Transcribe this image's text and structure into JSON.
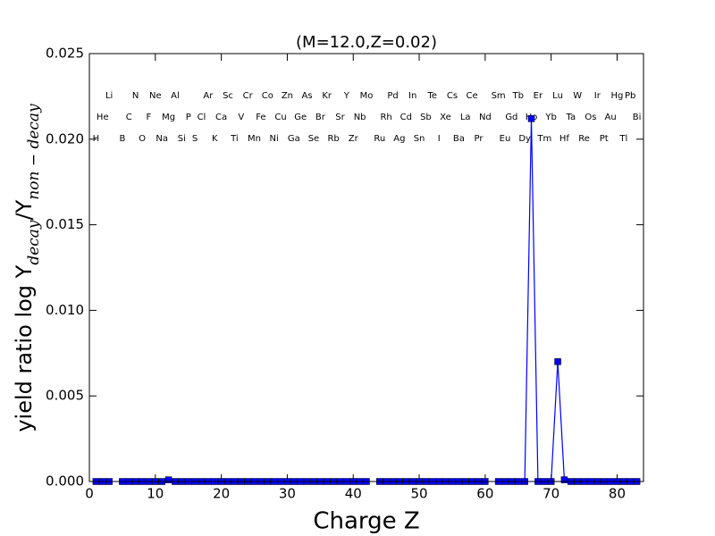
{
  "chart_data": {
    "type": "line",
    "title": "(M=12.0,Z=0.02)",
    "xlabel": "Charge Z",
    "ylabel": [
      {
        "text": "yield ratio log Y"
      },
      {
        "text": "decay",
        "sub": true
      },
      {
        "text": "/Y"
      },
      {
        "text": "non − decay",
        "sub": true
      }
    ],
    "x": [
      1,
      2,
      3,
      4,
      5,
      6,
      7,
      8,
      9,
      10,
      11,
      12,
      13,
      14,
      15,
      16,
      17,
      18,
      19,
      20,
      21,
      22,
      23,
      24,
      25,
      26,
      27,
      28,
      29,
      30,
      31,
      32,
      33,
      34,
      35,
      36,
      37,
      38,
      39,
      40,
      41,
      42,
      43,
      44,
      45,
      46,
      47,
      48,
      49,
      50,
      51,
      52,
      53,
      54,
      55,
      56,
      57,
      58,
      59,
      60,
      61,
      62,
      63,
      64,
      65,
      66,
      67,
      68,
      69,
      70,
      71,
      72,
      73,
      74,
      75,
      76,
      77,
      78,
      79,
      80,
      81,
      82,
      83
    ],
    "series": [
      {
        "color": "#0000ff",
        "marker": "square",
        "values": [
          0,
          0,
          0,
          null,
          0,
          0,
          0,
          0,
          0,
          0,
          0,
          0.0001,
          0,
          0,
          0,
          0,
          0,
          0,
          0,
          0,
          0,
          0,
          0,
          0,
          0,
          0,
          0,
          0,
          0,
          0,
          0,
          0,
          0,
          0,
          0,
          0,
          0,
          0,
          0,
          0,
          0,
          0,
          null,
          0,
          0,
          0,
          0,
          0,
          0,
          0,
          0,
          0,
          0,
          0,
          0,
          0,
          0,
          0,
          0,
          0,
          null,
          0,
          0,
          0,
          0,
          0,
          0.0212,
          0,
          0,
          0,
          0.007,
          0.0001,
          0,
          0,
          0,
          0,
          0,
          0,
          0,
          0,
          0,
          0,
          0
        ]
      }
    ],
    "xlim": [
      0,
      84
    ],
    "xticks": [
      0,
      10,
      20,
      30,
      40,
      50,
      60,
      70,
      80
    ],
    "ylim": [
      0,
      0.025
    ],
    "yticks": [
      {
        "value": 0,
        "label": "0.000"
      },
      {
        "value": 0.005,
        "label": "0.005"
      },
      {
        "value": 0.01,
        "label": "0.010"
      },
      {
        "value": 0.015,
        "label": "0.015"
      },
      {
        "value": 0.02,
        "label": "0.020"
      },
      {
        "value": 0.025,
        "label": "0.025"
      }
    ],
    "grid": false,
    "element_rows": [
      [
        {
          "x": 3,
          "label": "Li"
        },
        {
          "x": 7,
          "label": "N"
        },
        {
          "x": 10,
          "label": "Ne"
        },
        {
          "x": 13,
          "label": "Al"
        },
        {
          "x": 18,
          "label": "Ar"
        },
        {
          "x": 21,
          "label": "Sc"
        },
        {
          "x": 24,
          "label": "Cr"
        },
        {
          "x": 27,
          "label": "Co"
        },
        {
          "x": 30,
          "label": "Zn"
        },
        {
          "x": 33,
          "label": "As"
        },
        {
          "x": 36,
          "label": "Kr"
        },
        {
          "x": 39,
          "label": "Y"
        },
        {
          "x": 42,
          "label": "Mo"
        },
        {
          "x": 46,
          "label": "Pd"
        },
        {
          "x": 49,
          "label": "In"
        },
        {
          "x": 52,
          "label": "Te"
        },
        {
          "x": 55,
          "label": "Cs"
        },
        {
          "x": 58,
          "label": "Ce"
        },
        {
          "x": 62,
          "label": "Sm"
        },
        {
          "x": 65,
          "label": "Tb"
        },
        {
          "x": 68,
          "label": "Er"
        },
        {
          "x": 71,
          "label": "Lu"
        },
        {
          "x": 74,
          "label": "W"
        },
        {
          "x": 77,
          "label": "Ir"
        },
        {
          "x": 80,
          "label": "Hg"
        },
        {
          "x": 82,
          "label": "Pb"
        }
      ],
      [
        {
          "x": 2,
          "label": "He"
        },
        {
          "x": 6,
          "label": "C"
        },
        {
          "x": 9,
          "label": "F"
        },
        {
          "x": 12,
          "label": "Mg"
        },
        {
          "x": 15,
          "label": "P"
        },
        {
          "x": 17,
          "label": "Cl"
        },
        {
          "x": 20,
          "label": "Ca"
        },
        {
          "x": 23,
          "label": "V"
        },
        {
          "x": 26,
          "label": "Fe"
        },
        {
          "x": 29,
          "label": "Cu"
        },
        {
          "x": 32,
          "label": "Ge"
        },
        {
          "x": 35,
          "label": "Br"
        },
        {
          "x": 38,
          "label": "Sr"
        },
        {
          "x": 41,
          "label": "Nb"
        },
        {
          "x": 45,
          "label": "Rh"
        },
        {
          "x": 48,
          "label": "Cd"
        },
        {
          "x": 51,
          "label": "Sb"
        },
        {
          "x": 54,
          "label": "Xe"
        },
        {
          "x": 57,
          "label": "La"
        },
        {
          "x": 60,
          "label": "Nd"
        },
        {
          "x": 64,
          "label": "Gd"
        },
        {
          "x": 67,
          "label": "Ho"
        },
        {
          "x": 70,
          "label": "Yb"
        },
        {
          "x": 73,
          "label": "Ta"
        },
        {
          "x": 76,
          "label": "Os"
        },
        {
          "x": 79,
          "label": "Au"
        },
        {
          "x": 83,
          "label": "Bi"
        }
      ],
      [
        {
          "x": 1,
          "label": "H"
        },
        {
          "x": 5,
          "label": "B"
        },
        {
          "x": 8,
          "label": "O"
        },
        {
          "x": 11,
          "label": "Na"
        },
        {
          "x": 14,
          "label": "Si"
        },
        {
          "x": 16,
          "label": "S"
        },
        {
          "x": 19,
          "label": "K"
        },
        {
          "x": 22,
          "label": "Ti"
        },
        {
          "x": 25,
          "label": "Mn"
        },
        {
          "x": 28,
          "label": "Ni"
        },
        {
          "x": 31,
          "label": "Ga"
        },
        {
          "x": 34,
          "label": "Se"
        },
        {
          "x": 37,
          "label": "Rb"
        },
        {
          "x": 40,
          "label": "Zr"
        },
        {
          "x": 44,
          "label": "Ru"
        },
        {
          "x": 47,
          "label": "Ag"
        },
        {
          "x": 50,
          "label": "Sn"
        },
        {
          "x": 53,
          "label": "I"
        },
        {
          "x": 56,
          "label": "Ba"
        },
        {
          "x": 59,
          "label": "Pr"
        },
        {
          "x": 63,
          "label": "Eu"
        },
        {
          "x": 66,
          "label": "Dy"
        },
        {
          "x": 69,
          "label": "Tm"
        },
        {
          "x": 72,
          "label": "Hf"
        },
        {
          "x": 75,
          "label": "Re"
        },
        {
          "x": 78,
          "label": "Pt"
        },
        {
          "x": 81,
          "label": "Tl"
        }
      ]
    ]
  }
}
